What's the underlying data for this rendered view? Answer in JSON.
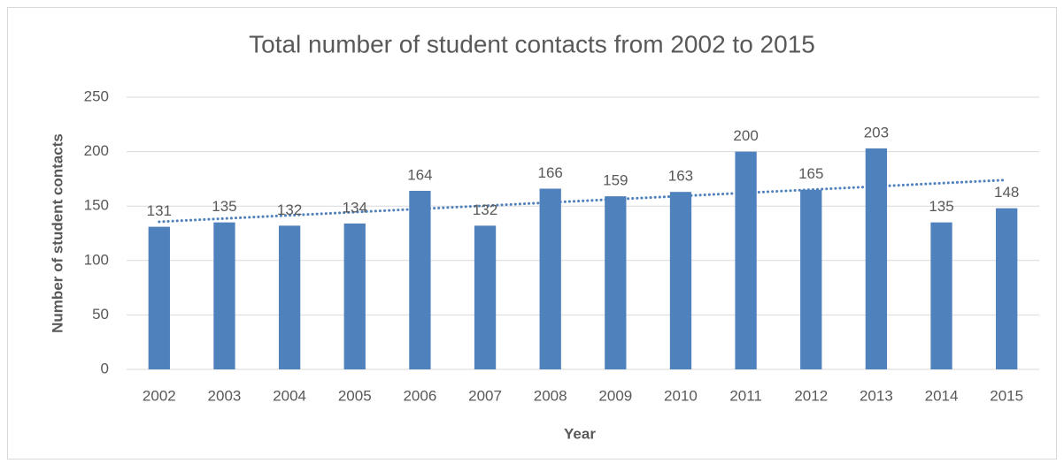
{
  "chart_data": {
    "type": "bar",
    "title": "Total number of student contacts from 2002 to 2015",
    "x_label": "Year",
    "y_label": "Number of student contacts",
    "categories": [
      "2002",
      "2003",
      "2004",
      "2005",
      "2006",
      "2007",
      "2008",
      "2009",
      "2010",
      "2011",
      "2012",
      "2013",
      "2014",
      "2015"
    ],
    "values": [
      131,
      135,
      132,
      134,
      164,
      132,
      166,
      159,
      163,
      200,
      165,
      203,
      135,
      148
    ],
    "color": "#4f81bd",
    "ylim": [
      0,
      250
    ],
    "yticks": [
      0,
      50,
      100,
      150,
      200,
      250
    ],
    "grid": true,
    "data_labels": true,
    "trendline": {
      "type": "linear",
      "color": "#4f81bd",
      "style": "dotted"
    }
  }
}
